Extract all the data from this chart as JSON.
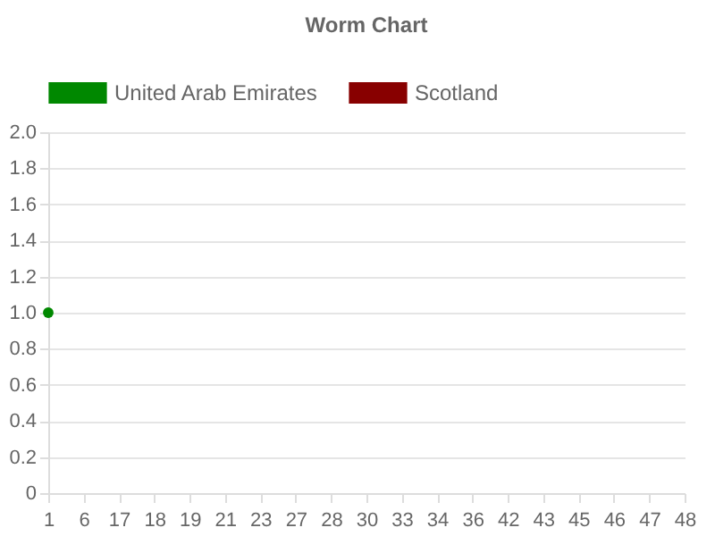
{
  "chart_data": {
    "type": "line",
    "title": "Worm Chart",
    "categories": [
      "1",
      "6",
      "17",
      "18",
      "19",
      "21",
      "23",
      "27",
      "28",
      "30",
      "33",
      "34",
      "36",
      "42",
      "43",
      "45",
      "46",
      "47",
      "48"
    ],
    "series": [
      {
        "name": "United Arab Emirates",
        "color": "#008800",
        "values": [
          1,
          null,
          null,
          null,
          null,
          null,
          null,
          null,
          null,
          null,
          null,
          null,
          null,
          null,
          null,
          null,
          null,
          null,
          null
        ]
      },
      {
        "name": "Scotland",
        "color": "#880000",
        "values": [
          null,
          null,
          null,
          null,
          null,
          null,
          null,
          null,
          null,
          null,
          null,
          null,
          null,
          null,
          null,
          null,
          null,
          null,
          null
        ]
      }
    ],
    "ylim": [
      0,
      2
    ],
    "yticks": [
      0,
      0.2,
      0.4,
      0.6,
      0.8,
      {
        "value": 1,
        "label": "1.0"
      },
      1.2,
      1.4,
      1.6,
      1.8,
      {
        "value": 2,
        "label": "2.0"
      }
    ],
    "grid": "y",
    "legend": "top",
    "marker": "circle",
    "line_style": "solid"
  }
}
